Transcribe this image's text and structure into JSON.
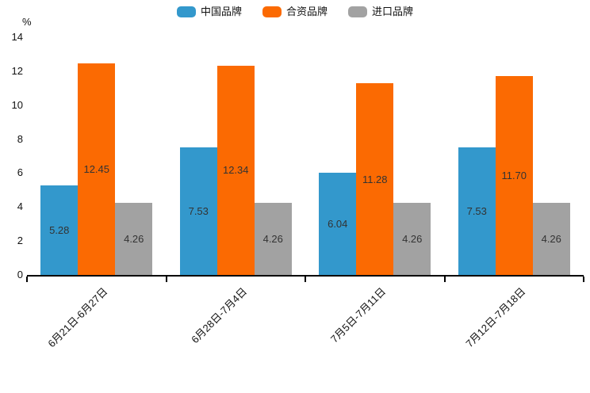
{
  "colors": {
    "background": "#ffffff",
    "axis": "#000000",
    "tick_label_text": "#111111",
    "bar_value_label_text": "#333333"
  },
  "chart_data": {
    "type": "bar",
    "title": "",
    "unit_label": "%",
    "categories": [
      "6月21日-6月27日",
      "6月28日-7月4日",
      "7月5日-7月11日",
      "7月12日-7月18日"
    ],
    "series": [
      {
        "name": "中国品牌",
        "color": "#3398CC",
        "values": [
          5.28,
          7.53,
          6.04,
          7.53
        ]
      },
      {
        "name": "合资品牌",
        "color": "#FB6A02",
        "values": [
          12.45,
          12.34,
          11.28,
          11.7
        ]
      },
      {
        "name": "进口品牌",
        "color": "#A2A2A2",
        "values": [
          4.26,
          4.26,
          4.26,
          4.26
        ]
      }
    ],
    "value_label_format": "2dp",
    "value_label_position": "inside-center",
    "ylim": [
      0,
      14
    ],
    "yticks": [
      0,
      2,
      4,
      6,
      8,
      10,
      12,
      14
    ],
    "xlabel_rotation_deg": 45,
    "legend_position": "top",
    "grid": false
  }
}
